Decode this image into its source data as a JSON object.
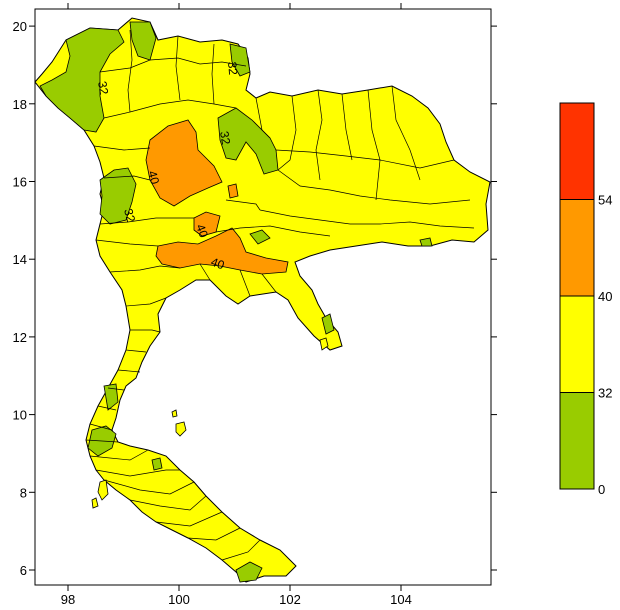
{
  "map": {
    "x_ticks": [
      "98",
      "100",
      "102",
      "104"
    ],
    "y_ticks": [
      "6",
      "8",
      "10",
      "12",
      "14",
      "16",
      "18",
      "20"
    ],
    "contour_labels": [
      "32",
      "32",
      "32",
      "40",
      "32",
      "40",
      "40"
    ]
  },
  "legend": {
    "bins": [
      {
        "min": 0,
        "max": 32,
        "color": "#99cc00"
      },
      {
        "min": 32,
        "max": 40,
        "color": "#ffff00"
      },
      {
        "min": 40,
        "max": 54,
        "color": "#ff9900"
      },
      {
        "min": 54,
        "max": 60,
        "color": "#ff3300"
      }
    ],
    "labels": [
      "0",
      "32",
      "40",
      "54"
    ]
  },
  "colors": {
    "land": "#ffff00",
    "low": "#99cc00",
    "mid_high": "#ff9900",
    "high": "#ff3300",
    "border": "#000000"
  }
}
